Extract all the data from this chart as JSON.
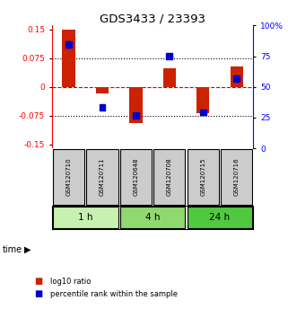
{
  "title": "GDS3433 / 23393",
  "samples": [
    "GSM120710",
    "GSM120711",
    "GSM120648",
    "GSM120708",
    "GSM120715",
    "GSM120716"
  ],
  "log10_ratio": [
    0.148,
    -0.018,
    -0.095,
    0.048,
    -0.068,
    0.052
  ],
  "percentile_rank": [
    87,
    32,
    25,
    77,
    28,
    57
  ],
  "time_groups": [
    {
      "label": "1 h",
      "indices": [
        0,
        1
      ],
      "color": "#c8f0b0"
    },
    {
      "label": "4 h",
      "indices": [
        2,
        3
      ],
      "color": "#90d870"
    },
    {
      "label": "24 h",
      "indices": [
        4,
        5
      ],
      "color": "#50c840"
    }
  ],
  "ylim_left": [
    -0.16,
    0.16
  ],
  "ylim_right": [
    0,
    100
  ],
  "yticks_left": [
    -0.15,
    -0.075,
    0,
    0.075,
    0.15
  ],
  "yticks_right": [
    0,
    25,
    50,
    75,
    100
  ],
  "ytick_labels_left": [
    "-0.15",
    "-0.075",
    "0",
    "0.075",
    "0.15"
  ],
  "ytick_labels_right": [
    "0",
    "25",
    "50",
    "75",
    "100%"
  ],
  "bar_color_red": "#cc2200",
  "bar_color_blue": "#0000cc",
  "grid_color": "#000000",
  "zero_line_color": "#cc0000",
  "sample_box_color": "#cccccc",
  "legend_red_label": "log10 ratio",
  "legend_blue_label": "percentile rank within the sample"
}
